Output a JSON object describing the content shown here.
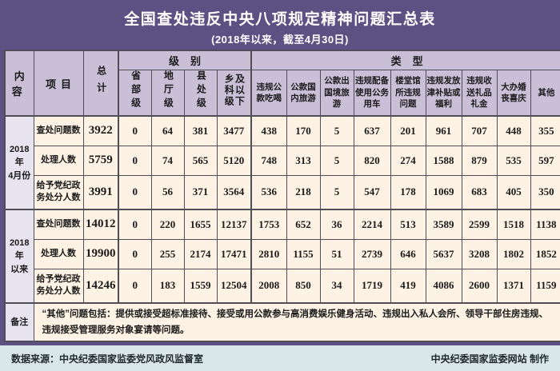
{
  "title": "全国查处违反中央八项规定精神问题汇总表",
  "subtitle": "(2018年以来，截至4月30日)",
  "colors": {
    "background": "#5d5183",
    "header_cell": "#c9c0d8",
    "period_cell": "#e7e4ef",
    "data_cell": "#fdf2e3",
    "footer_band": "#d9e6ea",
    "border": "#4f4d55",
    "title_text": "#ffffff"
  },
  "table": {
    "header": {
      "content": "内容",
      "project": "项目",
      "total": "总计",
      "level_group": "级别",
      "type_group": "类型",
      "level_cols": [
        "省部级",
        "地厅级",
        "县处级",
        "乡科级及以下"
      ],
      "type_cols": [
        "违规公款吃喝",
        "公款国内旅游",
        "公款出国境旅游",
        "违规配备使用公务用车",
        "楼堂馆所违规问题",
        "违规发放津补贴或福利",
        "违规收送礼品礼金",
        "大办婚丧喜庆",
        "其他"
      ]
    },
    "sections": [
      {
        "period": "2018年\n4月份",
        "rows": [
          {
            "label": "查处问题数",
            "total": "3922",
            "values": [
              "0",
              "64",
              "381",
              "3477",
              "438",
              "170",
              "5",
              "637",
              "201",
              "961",
              "707",
              "448",
              "355"
            ]
          },
          {
            "label": "处理人数",
            "total": "5759",
            "values": [
              "0",
              "74",
              "565",
              "5120",
              "748",
              "313",
              "5",
              "820",
              "274",
              "1588",
              "879",
              "535",
              "597"
            ]
          },
          {
            "label": "给予党纪政务处分人数",
            "total": "3991",
            "values": [
              "0",
              "56",
              "371",
              "3564",
              "536",
              "218",
              "5",
              "547",
              "178",
              "1069",
              "683",
              "405",
              "350"
            ]
          }
        ]
      },
      {
        "period": "2018年\n以来",
        "rows": [
          {
            "label": "查处问题数",
            "total": "14012",
            "values": [
              "0",
              "220",
              "1655",
              "12137",
              "1753",
              "652",
              "36",
              "2214",
              "513",
              "3589",
              "2599",
              "1518",
              "1138"
            ]
          },
          {
            "label": "处理人数",
            "total": "19900",
            "values": [
              "0",
              "255",
              "2174",
              "17471",
              "2810",
              "1155",
              "51",
              "2739",
              "646",
              "5637",
              "3208",
              "1802",
              "1852"
            ]
          },
          {
            "label": "给予党纪政务处分人数",
            "total": "14246",
            "values": [
              "0",
              "183",
              "1559",
              "12504",
              "2008",
              "850",
              "34",
              "1719",
              "419",
              "4086",
              "2600",
              "1371",
              "1159"
            ]
          }
        ]
      }
    ],
    "remark": {
      "label": "备注",
      "text": "“其他”问题包括：提供或接受超标准接待、接受或用公款参与高消费娱乐健身活动、违规出入私人会所、领导干部住房违规、违规接受管理服务对象宴请等问题。"
    }
  },
  "footer": {
    "source": "数据来源：中央纪委国家监委党风政风监督室",
    "credit": "中央纪委国家监委网站  制作"
  }
}
